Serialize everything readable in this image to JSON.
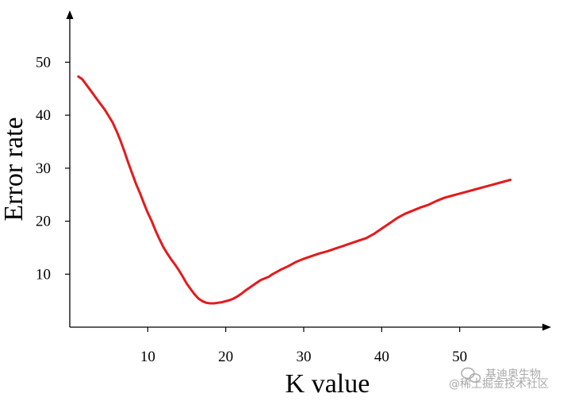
{
  "chart_data": {
    "type": "line",
    "title": "",
    "xlabel": "K value",
    "ylabel": "Error rate",
    "xlim": [
      0,
      60
    ],
    "ylim": [
      0,
      55
    ],
    "x_ticks": [
      10,
      20,
      30,
      40,
      50
    ],
    "y_ticks": [
      10,
      20,
      30,
      40,
      50
    ],
    "grid": false,
    "series": [
      {
        "color": "#e41a1c",
        "x": [
          1.1,
          1.6,
          2,
          2.5,
          3,
          3.5,
          4,
          4.5,
          5,
          5.5,
          6,
          6.5,
          7,
          7.5,
          8,
          8.5,
          9,
          9.5,
          10,
          10.5,
          11,
          11.5,
          12,
          12.5,
          13,
          13.5,
          14,
          14.5,
          15,
          15.5,
          16,
          16.5,
          17,
          17.5,
          18,
          18.5,
          19,
          19.5,
          20,
          20.5,
          21,
          21.5,
          22,
          22.5,
          23,
          23.5,
          24,
          24.5,
          25,
          25.5,
          26,
          27,
          28,
          29,
          30,
          31,
          32,
          33,
          34,
          35,
          36,
          37,
          38,
          39,
          40,
          41,
          42,
          43,
          44,
          45,
          46,
          47,
          48,
          49,
          50,
          51,
          52,
          53,
          54,
          55,
          56,
          56.5
        ],
        "y": [
          47.3,
          46.8,
          46,
          45,
          44,
          43,
          42,
          41,
          39.8,
          38.6,
          37,
          35.2,
          33.2,
          31,
          29,
          27,
          25.3,
          23.4,
          21.6,
          20,
          18.2,
          16.6,
          15.1,
          13.9,
          12.8,
          11.8,
          10.7,
          9.5,
          8.2,
          7.2,
          6.2,
          5.4,
          4.9,
          4.6,
          4.5,
          4.5,
          4.6,
          4.7,
          4.9,
          5.1,
          5.4,
          5.8,
          6.3,
          6.9,
          7.4,
          7.9,
          8.4,
          8.9,
          9.2,
          9.5,
          10,
          10.8,
          11.5,
          12.3,
          12.9,
          13.4,
          13.9,
          14.3,
          14.8,
          15.3,
          15.8,
          16.3,
          16.8,
          17.6,
          18.6,
          19.6,
          20.6,
          21.4,
          22,
          22.6,
          23.1,
          23.8,
          24.4,
          24.8,
          25.2,
          25.6,
          26,
          26.4,
          26.8,
          27.2,
          27.6,
          27.8
        ]
      }
    ]
  },
  "watermark": {
    "text": "基迪奥生物",
    "subtext": "@稀土掘金技术社区"
  }
}
